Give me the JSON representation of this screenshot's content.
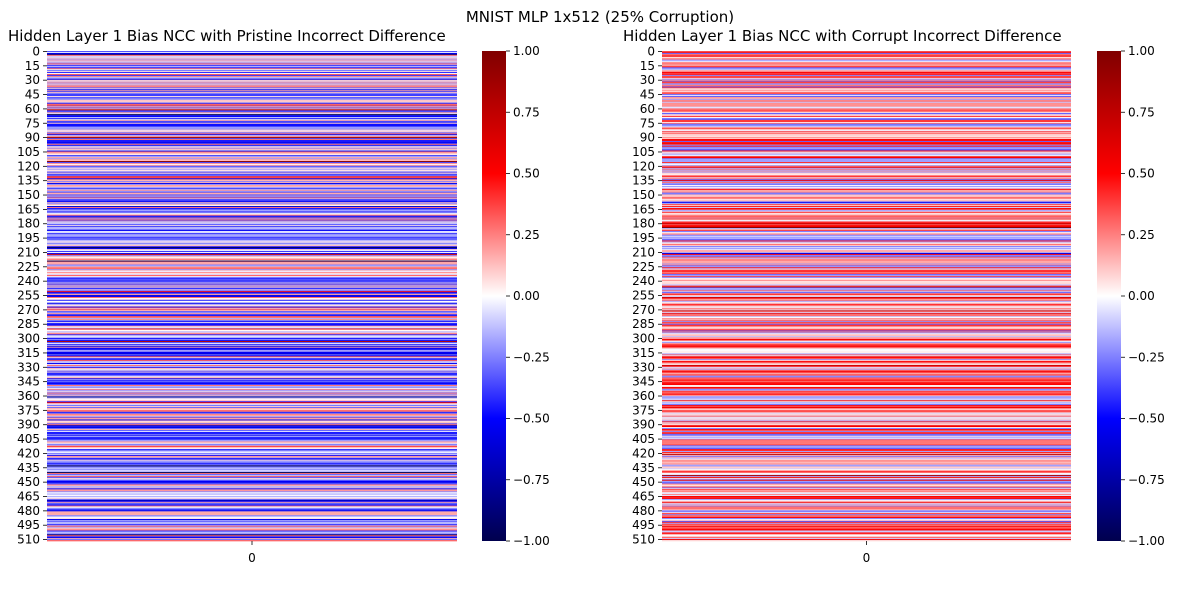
{
  "figure": {
    "suptitle": "MNIST MLP 1x512 (25% Corruption)"
  },
  "chart_data": [
    {
      "type": "heatmap",
      "title": "Hidden Layer 1 Bias NCC with Pristine Incorrect Difference",
      "xlabel": "",
      "ylabel": "",
      "x_categories": [
        "0"
      ],
      "y_tick_labels": [
        "0",
        "15",
        "30",
        "45",
        "60",
        "75",
        "90",
        "105",
        "120",
        "135",
        "150",
        "165",
        "180",
        "195",
        "210",
        "225",
        "240",
        "255",
        "270",
        "285",
        "300",
        "315",
        "330",
        "345",
        "360",
        "375",
        "390",
        "405",
        "420",
        "435",
        "450",
        "465",
        "480",
        "495",
        "510"
      ],
      "n_rows": 512,
      "colormap": "seismic",
      "vmin": -1.0,
      "vmax": 1.0,
      "colorbar_ticks": [
        "1.00",
        "0.75",
        "0.50",
        "0.25",
        "0.00",
        "−0.25",
        "−0.50",
        "−0.75",
        "−1.00"
      ],
      "values_seed": 7,
      "bias": -0.12
    },
    {
      "type": "heatmap",
      "title": "Hidden Layer 1 Bias NCC with Corrupt Incorrect Difference",
      "xlabel": "",
      "ylabel": "",
      "x_categories": [
        "0"
      ],
      "y_tick_labels": [
        "0",
        "15",
        "30",
        "45",
        "60",
        "75",
        "90",
        "105",
        "120",
        "135",
        "150",
        "165",
        "180",
        "195",
        "210",
        "225",
        "240",
        "255",
        "270",
        "285",
        "300",
        "315",
        "330",
        "345",
        "360",
        "375",
        "390",
        "405",
        "420",
        "435",
        "450",
        "465",
        "480",
        "495",
        "510"
      ],
      "n_rows": 512,
      "colormap": "seismic",
      "vmin": -1.0,
      "vmax": 1.0,
      "colorbar_ticks": [
        "1.00",
        "0.75",
        "0.50",
        "0.25",
        "0.00",
        "−0.25",
        "−0.50",
        "−0.75",
        "−1.00"
      ],
      "values_seed": 19,
      "bias": 0.12
    }
  ]
}
